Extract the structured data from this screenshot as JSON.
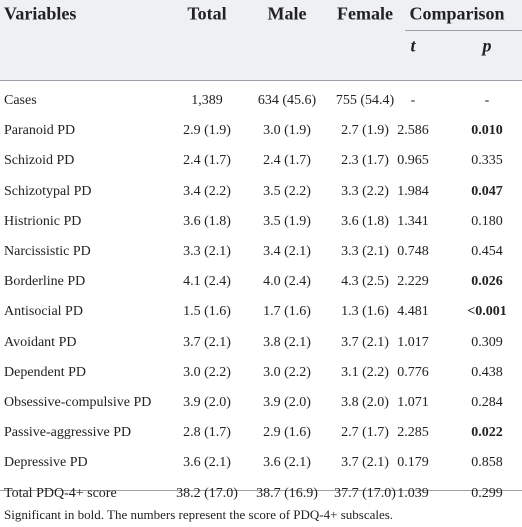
{
  "table": {
    "header": [
      "Variables",
      "Total",
      "Male",
      "Female",
      "Comparison"
    ],
    "subheader": [
      "t",
      "p"
    ],
    "rows": [
      [
        "Cases",
        "1,389",
        "634 (45.6)",
        "755 (54.4)",
        "-",
        "-"
      ],
      [
        "Paranoid PD",
        "2.9 (1.9)",
        "3.0 (1.9)",
        "2.7 (1.9)",
        "2.586",
        "0.010"
      ],
      [
        "Schizoid PD",
        "2.4 (1.7)",
        "2.4 (1.7)",
        "2.3 (1.7)",
        "0.965",
        "0.335"
      ],
      [
        "Schizotypal PD",
        "3.4 (2.2)",
        "3.5 (2.2)",
        "3.3 (2.2)",
        "1.984",
        "0.047"
      ],
      [
        "Histrionic PD",
        "3.6 (1.8)",
        "3.5 (1.9)",
        "3.6 (1.8)",
        "1.341",
        "0.180"
      ],
      [
        "Narcissistic PD",
        "3.3 (2.1)",
        "3.4 (2.1)",
        "3.3 (2.1)",
        "0.748",
        "0.454"
      ],
      [
        "Borderline PD",
        "4.1 (2.4)",
        "4.0 (2.4)",
        "4.3 (2.5)",
        "2.229",
        "0.026"
      ],
      [
        "Antisocial PD",
        "1.5 (1.6)",
        "1.7 (1.6)",
        "1.3 (1.6)",
        "4.481",
        "<0.001"
      ],
      [
        "Avoidant PD",
        "3.7 (2.1)",
        "3.8 (2.1)",
        "3.7 (2.1)",
        "1.017",
        "0.309"
      ],
      [
        "Dependent PD",
        "3.0 (2.2)",
        "3.0 (2.2)",
        "3.1 (2.2)",
        "0.776",
        "0.438"
      ],
      [
        "Obsessive-compulsive PD",
        "3.9 (2.0)",
        "3.9 (2.0)",
        "3.8 (2.0)",
        "1.071",
        "0.284"
      ],
      [
        "Passive-aggressive PD",
        "2.8 (1.7)",
        "2.9 (1.6)",
        "2.7 (1.7)",
        "2.285",
        "0.022"
      ],
      [
        "Depressive PD",
        "3.6 (2.1)",
        "3.6 (2.1)",
        "3.7 (2.1)",
        "0.179",
        "0.858"
      ],
      [
        "Total PDQ-4+ score",
        "38.2 (17.0)",
        "38.7 (16.9)",
        "37.7 (17.0)",
        "1.039",
        "0.299"
      ]
    ],
    "footnote": "Significant in bold. The numbers represent the score of PDQ-4+ subscales."
  }
}
